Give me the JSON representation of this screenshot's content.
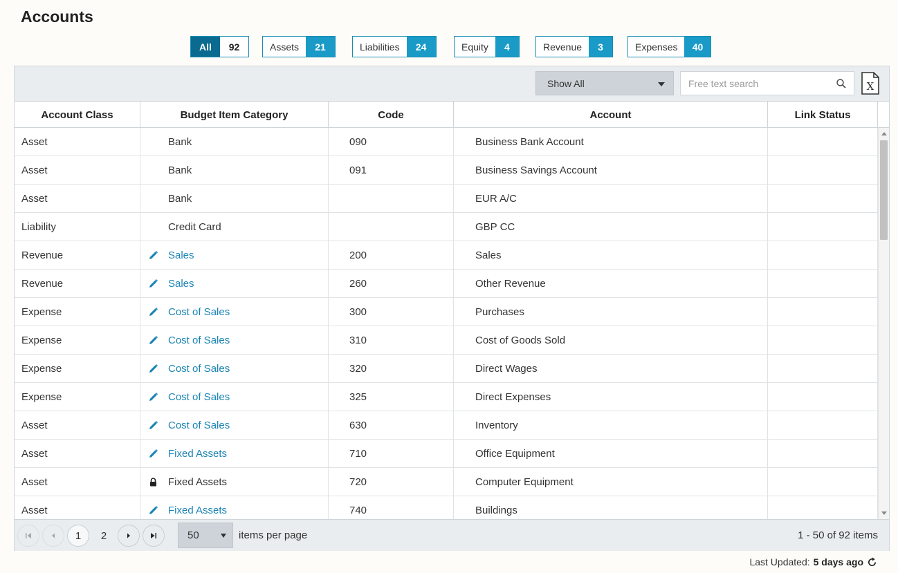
{
  "page": {
    "title": "Accounts"
  },
  "filters": [
    {
      "label": "All",
      "count": "92",
      "active": true
    },
    {
      "label": "Assets",
      "count": "21",
      "active": false
    },
    {
      "label": "Liabilities",
      "count": "24",
      "active": false
    },
    {
      "label": "Equity",
      "count": "4",
      "active": false
    },
    {
      "label": "Revenue",
      "count": "3",
      "active": false
    },
    {
      "label": "Expenses",
      "count": "40",
      "active": false
    }
  ],
  "toolbar": {
    "show_filter": "Show All",
    "search_placeholder": "Free text search",
    "search_value": "",
    "export_icon": "excel-export-icon"
  },
  "columns": [
    "Account Class",
    "Budget Item Category",
    "Code",
    "Account",
    "Link Status"
  ],
  "rows": [
    {
      "cls": "Asset",
      "cat": "Bank",
      "cat_icon": "",
      "code": "090",
      "account": "Business Bank Account",
      "link": ""
    },
    {
      "cls": "Asset",
      "cat": "Bank",
      "cat_icon": "",
      "code": "091",
      "account": "Business Savings Account",
      "link": ""
    },
    {
      "cls": "Asset",
      "cat": "Bank",
      "cat_icon": "",
      "code": "",
      "account": "EUR A/C",
      "link": ""
    },
    {
      "cls": "Liability",
      "cat": "Credit Card",
      "cat_icon": "",
      "code": "",
      "account": "GBP CC",
      "link": ""
    },
    {
      "cls": "Revenue",
      "cat": "Sales",
      "cat_icon": "pencil",
      "code": "200",
      "account": "Sales",
      "link": ""
    },
    {
      "cls": "Revenue",
      "cat": "Sales",
      "cat_icon": "pencil",
      "code": "260",
      "account": "Other Revenue",
      "link": ""
    },
    {
      "cls": "Expense",
      "cat": "Cost of Sales",
      "cat_icon": "pencil",
      "code": "300",
      "account": "Purchases",
      "link": ""
    },
    {
      "cls": "Expense",
      "cat": "Cost of Sales",
      "cat_icon": "pencil",
      "code": "310",
      "account": "Cost of Goods Sold",
      "link": ""
    },
    {
      "cls": "Expense",
      "cat": "Cost of Sales",
      "cat_icon": "pencil",
      "code": "320",
      "account": "Direct Wages",
      "link": ""
    },
    {
      "cls": "Expense",
      "cat": "Cost of Sales",
      "cat_icon": "pencil",
      "code": "325",
      "account": "Direct Expenses",
      "link": ""
    },
    {
      "cls": "Asset",
      "cat": "Cost of Sales",
      "cat_icon": "pencil",
      "code": "630",
      "account": "Inventory",
      "link": ""
    },
    {
      "cls": "Asset",
      "cat": "Fixed Assets",
      "cat_icon": "pencil",
      "code": "710",
      "account": "Office Equipment",
      "link": ""
    },
    {
      "cls": "Asset",
      "cat": "Fixed Assets",
      "cat_icon": "lock",
      "code": "720",
      "account": "Computer Equipment",
      "link": ""
    },
    {
      "cls": "Asset",
      "cat": "Fixed Assets",
      "cat_icon": "pencil",
      "code": "740",
      "account": "Buildings",
      "link": ""
    }
  ],
  "pager": {
    "pages": [
      "1",
      "2"
    ],
    "current_page": "1",
    "per_page": "50",
    "per_page_label": "items per page",
    "range_info": "1 - 50 of 92 items"
  },
  "footer": {
    "last_updated_label": "Last Updated:",
    "last_updated_value": "5 days ago"
  },
  "colors": {
    "accent": "#1a9bc7",
    "accent_dark": "#0a6a90",
    "link": "#1a84b4"
  }
}
